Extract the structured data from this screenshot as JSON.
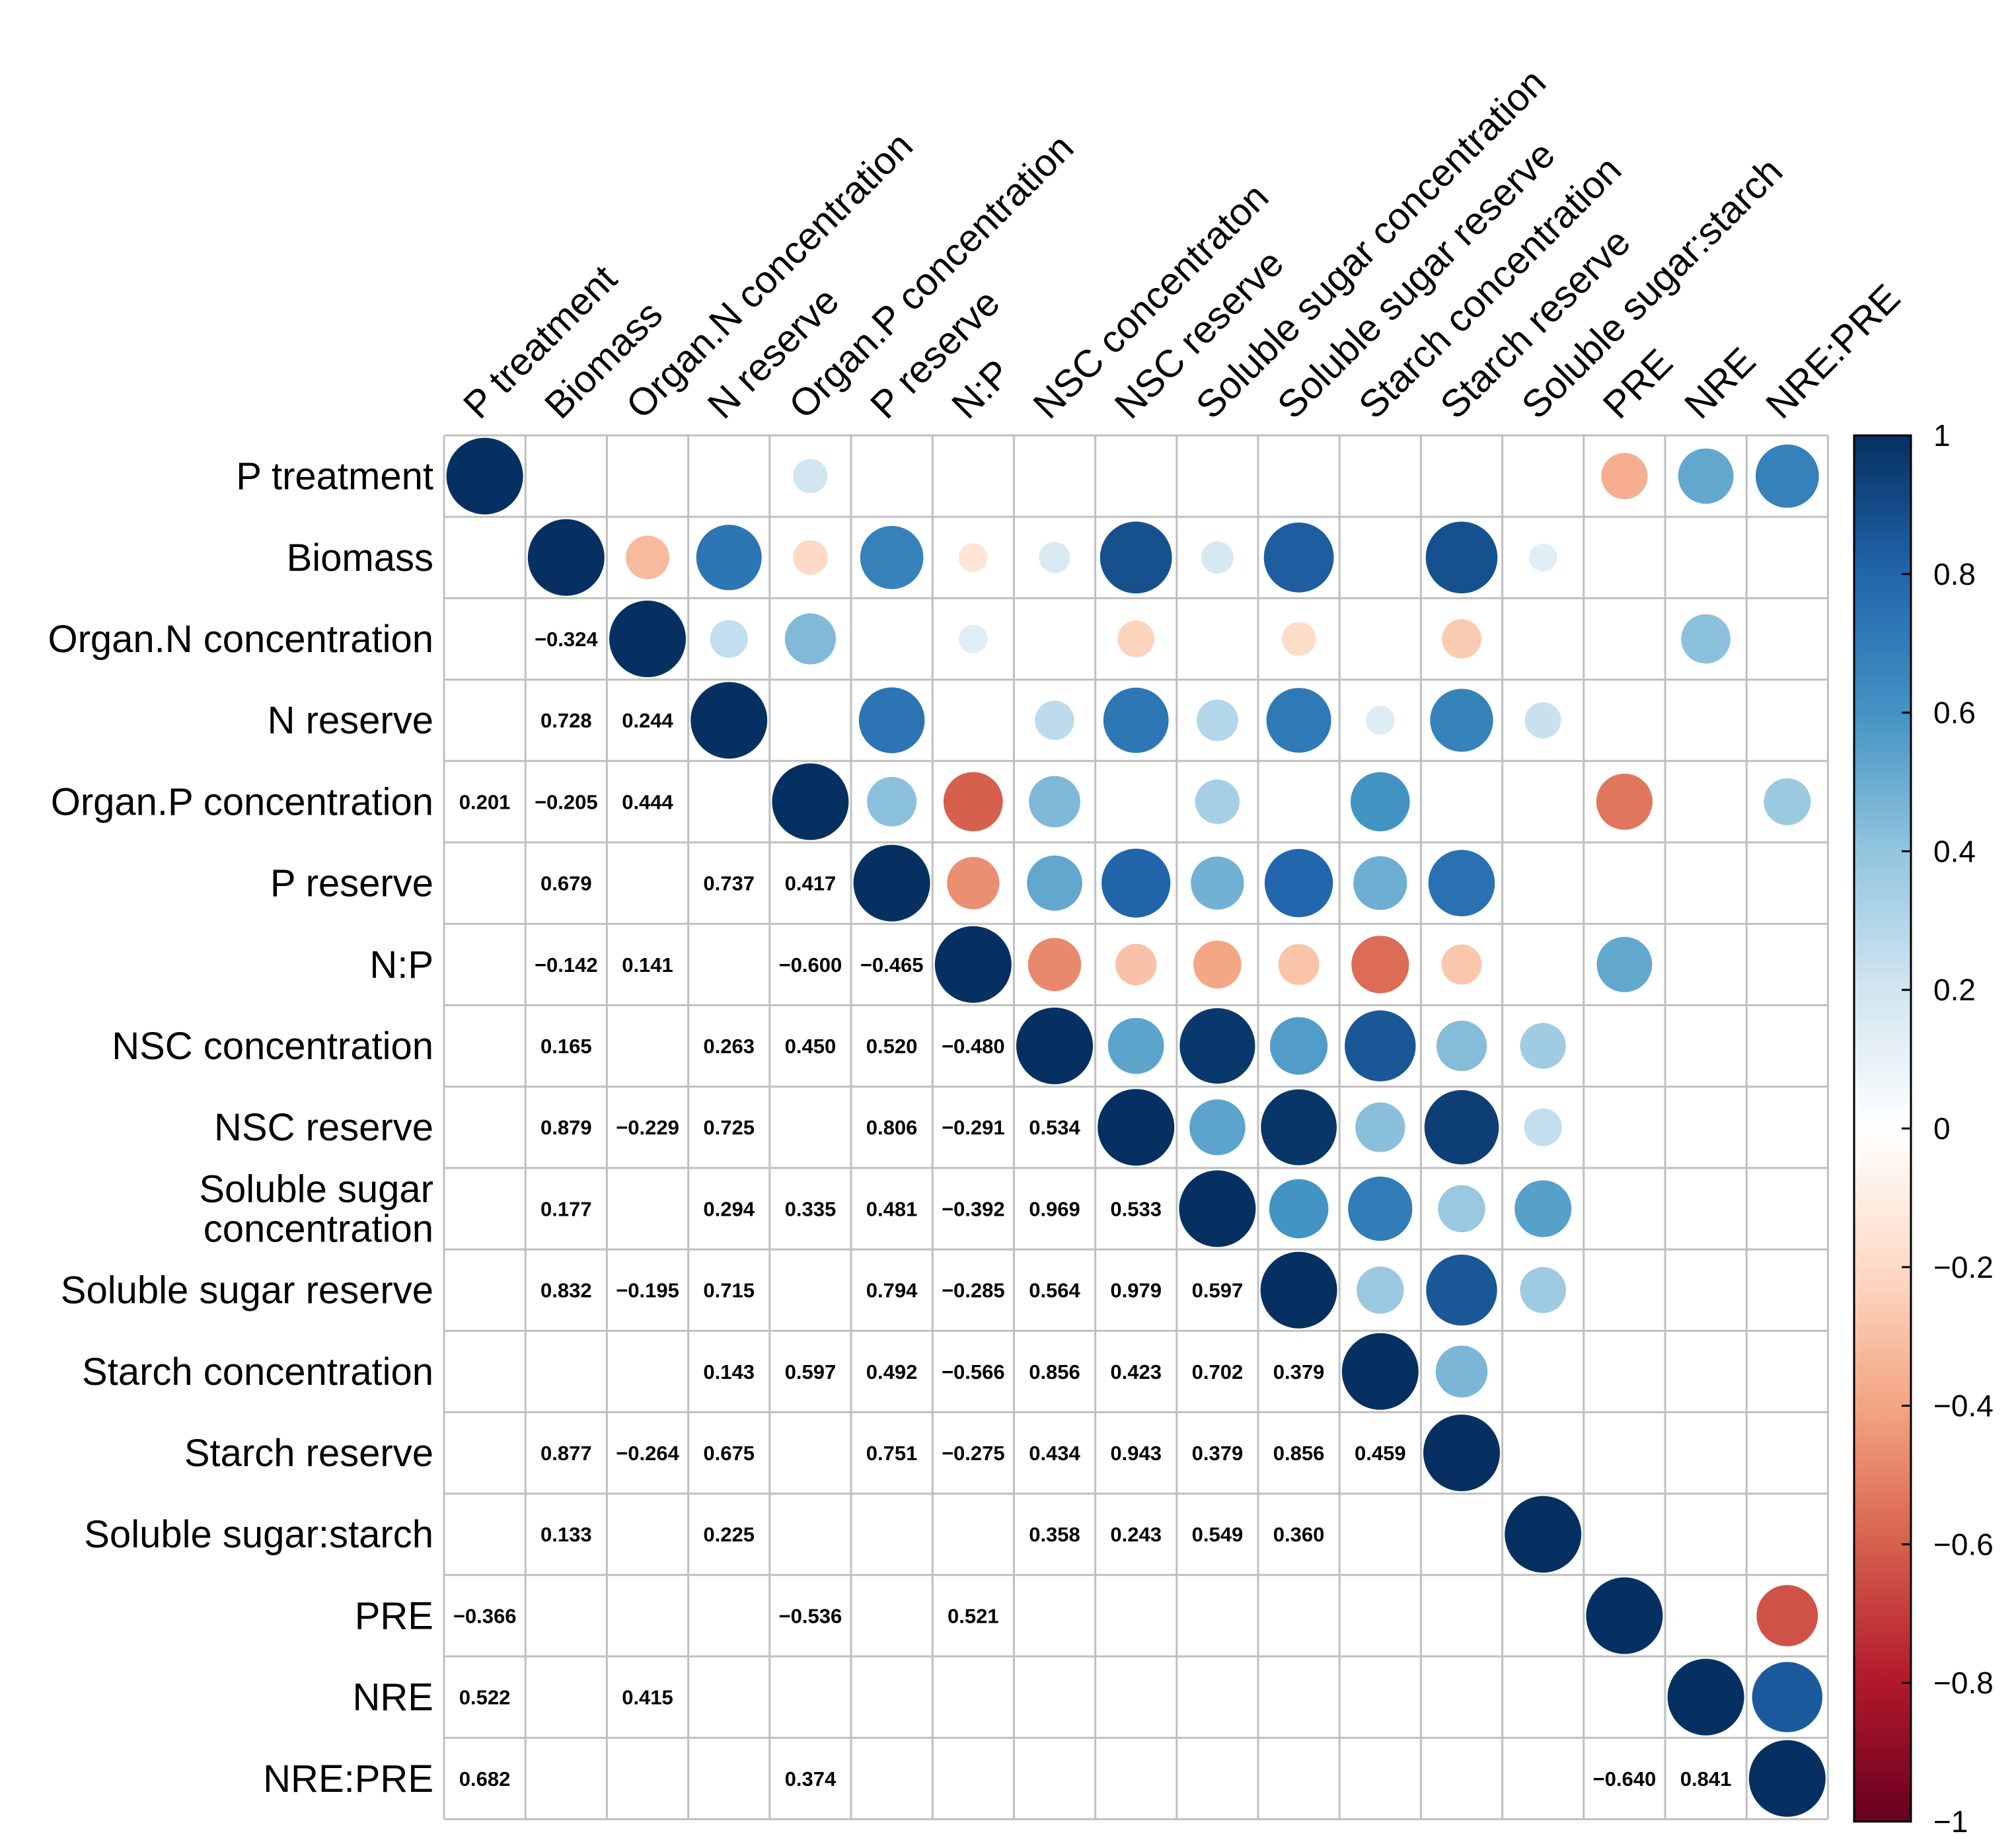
{
  "chart_data": {
    "type": "heatmap",
    "subtype": "correlation-matrix",
    "variables": [
      "P treatment",
      "Biomass",
      "Organ.N concentration",
      "N reserve",
      "Organ.P concentration",
      "P reserve",
      "N:P",
      "NSC concentraton",
      "NSC reserve",
      "Soluble sugar concentration",
      "Soluble sugar reserve",
      "Starch concentration",
      "Starch reserve",
      "Soluble sugar:starch",
      "PRE",
      "NRE",
      "NRE:PRE"
    ],
    "row_labels": [
      "P treatment",
      "Biomass",
      "Organ.N concentration",
      "N reserve",
      "Organ.P concentration",
      "P reserve",
      "N:P",
      "NSC concentration",
      "NSC reserve",
      "Soluble sugar\nconcentration",
      "Soluble sugar reserve",
      "Starch concentration",
      "Starch reserve",
      "Soluble sugar:starch",
      "PRE",
      "NRE",
      "NRE:PRE"
    ],
    "column_labels": [
      "P treatment",
      "Biomass",
      "Organ.N concentration",
      "N reserve",
      "Organ.P concentration",
      "P reserve",
      "N:P",
      "NSC concentraton",
      "NSC reserve",
      "Soluble sugar concentration",
      "Soluble sugar reserve",
      "Starch concentration",
      "Starch reserve",
      "Soluble sugar:starch",
      "PRE",
      "NRE",
      "NRE:PRE"
    ],
    "lower_triangle_display": "numbers",
    "upper_triangle_display": "circles",
    "diagonal_display": "circles",
    "correlations": [
      {
        "row": 1,
        "col": 0,
        "value": null
      },
      {
        "row": 2,
        "col": 1,
        "value": -0.324
      },
      {
        "row": 3,
        "col": 1,
        "value": 0.728
      },
      {
        "row": 3,
        "col": 2,
        "value": 0.244
      },
      {
        "row": 4,
        "col": 0,
        "value": 0.201
      },
      {
        "row": 4,
        "col": 1,
        "value": -0.205
      },
      {
        "row": 4,
        "col": 2,
        "value": 0.444
      },
      {
        "row": 5,
        "col": 1,
        "value": 0.679
      },
      {
        "row": 5,
        "col": 3,
        "value": 0.737
      },
      {
        "row": 5,
        "col": 4,
        "value": 0.417
      },
      {
        "row": 6,
        "col": 1,
        "value": -0.142
      },
      {
        "row": 6,
        "col": 2,
        "value": 0.141
      },
      {
        "row": 6,
        "col": 4,
        "value": -0.6
      },
      {
        "row": 6,
        "col": 5,
        "value": -0.465
      },
      {
        "row": 7,
        "col": 1,
        "value": 0.165
      },
      {
        "row": 7,
        "col": 3,
        "value": 0.263
      },
      {
        "row": 7,
        "col": 4,
        "value": 0.45
      },
      {
        "row": 7,
        "col": 5,
        "value": 0.52
      },
      {
        "row": 7,
        "col": 6,
        "value": -0.48
      },
      {
        "row": 8,
        "col": 1,
        "value": 0.879
      },
      {
        "row": 8,
        "col": 2,
        "value": -0.229
      },
      {
        "row": 8,
        "col": 3,
        "value": 0.725
      },
      {
        "row": 8,
        "col": 5,
        "value": 0.806
      },
      {
        "row": 8,
        "col": 6,
        "value": -0.291
      },
      {
        "row": 8,
        "col": 7,
        "value": 0.534
      },
      {
        "row": 9,
        "col": 1,
        "value": 0.177
      },
      {
        "row": 9,
        "col": 3,
        "value": 0.294
      },
      {
        "row": 9,
        "col": 4,
        "value": 0.335
      },
      {
        "row": 9,
        "col": 5,
        "value": 0.481
      },
      {
        "row": 9,
        "col": 6,
        "value": -0.392
      },
      {
        "row": 9,
        "col": 7,
        "value": 0.969
      },
      {
        "row": 9,
        "col": 8,
        "value": 0.533
      },
      {
        "row": 10,
        "col": 1,
        "value": 0.832
      },
      {
        "row": 10,
        "col": 2,
        "value": -0.195
      },
      {
        "row": 10,
        "col": 3,
        "value": 0.715
      },
      {
        "row": 10,
        "col": 5,
        "value": 0.794
      },
      {
        "row": 10,
        "col": 6,
        "value": -0.285
      },
      {
        "row": 10,
        "col": 7,
        "value": 0.564
      },
      {
        "row": 10,
        "col": 8,
        "value": 0.979
      },
      {
        "row": 10,
        "col": 9,
        "value": 0.597
      },
      {
        "row": 11,
        "col": 3,
        "value": 0.143
      },
      {
        "row": 11,
        "col": 4,
        "value": 0.597
      },
      {
        "row": 11,
        "col": 5,
        "value": 0.492
      },
      {
        "row": 11,
        "col": 6,
        "value": -0.566
      },
      {
        "row": 11,
        "col": 7,
        "value": 0.856
      },
      {
        "row": 11,
        "col": 8,
        "value": 0.423
      },
      {
        "row": 11,
        "col": 9,
        "value": 0.702
      },
      {
        "row": 11,
        "col": 10,
        "value": 0.379
      },
      {
        "row": 12,
        "col": 1,
        "value": 0.877
      },
      {
        "row": 12,
        "col": 2,
        "value": -0.264
      },
      {
        "row": 12,
        "col": 3,
        "value": 0.675
      },
      {
        "row": 12,
        "col": 5,
        "value": 0.751
      },
      {
        "row": 12,
        "col": 6,
        "value": -0.275
      },
      {
        "row": 12,
        "col": 7,
        "value": 0.434
      },
      {
        "row": 12,
        "col": 8,
        "value": 0.943
      },
      {
        "row": 12,
        "col": 9,
        "value": 0.379
      },
      {
        "row": 12,
        "col": 10,
        "value": 0.856
      },
      {
        "row": 12,
        "col": 11,
        "value": 0.459
      },
      {
        "row": 13,
        "col": 1,
        "value": 0.133
      },
      {
        "row": 13,
        "col": 3,
        "value": 0.225
      },
      {
        "row": 13,
        "col": 7,
        "value": 0.358
      },
      {
        "row": 13,
        "col": 8,
        "value": 0.243
      },
      {
        "row": 13,
        "col": 9,
        "value": 0.549
      },
      {
        "row": 13,
        "col": 10,
        "value": 0.36
      },
      {
        "row": 14,
        "col": 0,
        "value": -0.366
      },
      {
        "row": 14,
        "col": 4,
        "value": -0.536
      },
      {
        "row": 14,
        "col": 6,
        "value": 0.521
      },
      {
        "row": 15,
        "col": 0,
        "value": 0.522
      },
      {
        "row": 15,
        "col": 2,
        "value": 0.415
      },
      {
        "row": 16,
        "col": 0,
        "value": 0.682
      },
      {
        "row": 16,
        "col": 4,
        "value": 0.374
      },
      {
        "row": 16,
        "col": 14,
        "value": -0.64
      },
      {
        "row": 16,
        "col": 15,
        "value": 0.841
      }
    ],
    "value_labels": {
      "2,1": "−0.324",
      "3,1": "0.728",
      "3,2": "0.244",
      "4,0": "0.201",
      "4,1": "−0.205",
      "4,2": "0.444",
      "5,1": "0.679",
      "5,3": "0.737",
      "5,4": "0.417",
      "6,1": "−0.142",
      "6,2": "0.141",
      "6,4": "−0.600",
      "6,5": "−0.465",
      "7,1": "0.165",
      "7,3": "0.263",
      "7,4": "0.450",
      "7,5": "0.520",
      "7,6": "−0.480",
      "8,1": "0.879",
      "8,2": "−0.229",
      "8,3": "0.725",
      "8,5": "0.806",
      "8,6": "−0.291",
      "8,7": "0.534",
      "9,1": "0.177",
      "9,3": "0.294",
      "9,4": "0.335",
      "9,5": "0.481",
      "9,6": "−0.392",
      "9,7": "0.969",
      "9,8": "0.533",
      "10,1": "0.832",
      "10,2": "−0.195",
      "10,3": "0.715",
      "10,5": "0.794",
      "10,6": "−0.285",
      "10,7": "0.564",
      "10,8": "0.979",
      "10,9": "0.597",
      "11,3": "0.143",
      "11,4": "0.597",
      "11,5": "0.492",
      "11,6": "−0.566",
      "11,7": "0.856",
      "11,8": "0.423",
      "11,9": "0.702",
      "11,10": "0.379",
      "12,1": "0.877",
      "12,2": "−0.264",
      "12,3": "0.675",
      "12,5": "0.751",
      "12,6": "−0.275",
      "12,7": "0.434",
      "12,8": "0.943",
      "12,9": "0.379",
      "12,10": "0.856",
      "12,11": "0.459",
      "13,1": "0.133",
      "13,3": "0.225",
      "13,7": "0.358",
      "13,8": "0.243",
      "13,9": "0.549",
      "13,10": "0.360",
      "14,0": "−0.366",
      "14,4": "−0.536",
      "14,6": "0.521",
      "15,0": "0.522",
      "15,2": "0.415",
      "16,0": "0.682",
      "16,4": "0.374",
      "16,14": "−0.640",
      "16,15": "0.841"
    },
    "upper_extra": [
      {
        "row": 0,
        "col": 4,
        "value": 0.201
      },
      {
        "row": 0,
        "col": 14,
        "value": -0.366
      },
      {
        "row": 0,
        "col": 15,
        "value": 0.522
      },
      {
        "row": 0,
        "col": 16,
        "value": 0.682
      }
    ],
    "colorbar": {
      "range": [
        -1,
        1
      ],
      "ticks": [
        1,
        0.8,
        0.6,
        0.4,
        0.2,
        0,
        -0.2,
        -0.4,
        -0.6,
        -0.8,
        -1
      ],
      "tick_labels": [
        "1",
        "0.8",
        "0.6",
        "0.4",
        "0.2",
        "0",
        "−0.2",
        "−0.4",
        "−0.6",
        "−0.8",
        "−1"
      ],
      "colors": {
        "neg_full": "#67001F",
        "neg_mid": "#D6604D",
        "neg_light": "#FDDBC7",
        "zero": "#FFFFFF",
        "pos_light": "#D1E5F0",
        "pos_mid": "#4393C3",
        "pos_full": "#053061"
      }
    }
  }
}
